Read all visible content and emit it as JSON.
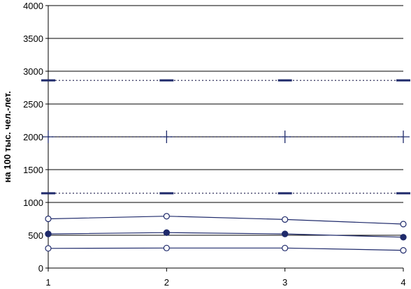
{
  "chart_data": {
    "type": "line",
    "title": "",
    "xlabel": "",
    "ylabel": "на 100 тыс. чел.-лет.",
    "x": [
      1,
      2,
      3,
      4
    ],
    "x_tick_labels": [
      "1",
      "2",
      "3",
      "4"
    ],
    "ylim": [
      0,
      4000
    ],
    "y_ticks": [
      0,
      500,
      1000,
      1500,
      2000,
      2500,
      3000,
      3500,
      4000
    ],
    "y_tick_labels": [
      "0",
      "500",
      "1000",
      "1500",
      "2000",
      "2500",
      "3000",
      "3500",
      "4000"
    ],
    "grid": "horizontal",
    "colors": {
      "series": "#1f2a6b",
      "grid": "#000000",
      "axis": "#000000"
    },
    "series": [
      {
        "values": [
          2860,
          2860,
          2860,
          2860
        ],
        "marker": "dash",
        "line": "dotted"
      },
      {
        "values": [
          2000,
          2000,
          2000,
          2000
        ],
        "marker": "plus",
        "line": "dotted"
      },
      {
        "values": [
          1140,
          1140,
          1140,
          1140
        ],
        "marker": "dash",
        "line": "dotted"
      },
      {
        "values": [
          750,
          790,
          740,
          670
        ],
        "marker": "open-circle",
        "line": "solid"
      },
      {
        "values": [
          520,
          540,
          520,
          470
        ],
        "marker": "filled-circle",
        "line": "solid"
      },
      {
        "values": [
          300,
          305,
          305,
          270
        ],
        "marker": "open-circle",
        "line": "solid"
      }
    ]
  }
}
